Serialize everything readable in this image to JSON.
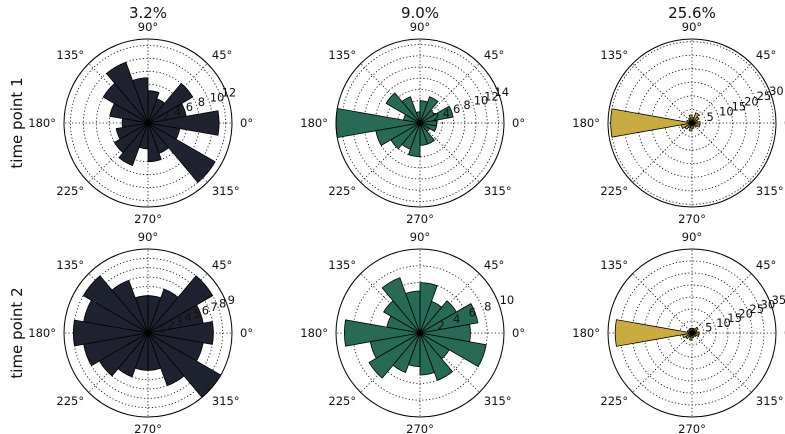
{
  "figure": {
    "row_labels": [
      "time point 1",
      "time point 2"
    ],
    "column_titles": [
      "3.2%",
      "9.0%",
      "25.6%"
    ],
    "angle_tick_labels": [
      "0°",
      "45°",
      "90°",
      "135°",
      "180°",
      "225°",
      "270°",
      "315°"
    ]
  },
  "chart_data": [
    {
      "type": "polar-bar",
      "title": "3.2%",
      "row": "time point 1",
      "color": "#1f2230",
      "theta_deg": [
        0,
        20,
        40,
        60,
        80,
        100,
        120,
        140,
        160,
        180,
        200,
        220,
        240,
        260,
        280,
        300,
        320,
        340
      ],
      "values": [
        11,
        6,
        8,
        4,
        5,
        7,
        10,
        8,
        6,
        4,
        5,
        6,
        7,
        4,
        6,
        5,
        12,
        5
      ],
      "rmax": 13,
      "r_ticks": [
        2,
        4,
        6,
        8,
        10,
        12
      ],
      "r_tick_labels": [
        "2",
        "4",
        "6",
        "8",
        "10",
        "12"
      ],
      "grid": true
    },
    {
      "type": "polar-bar",
      "title": "9.0%",
      "row": "time point 1",
      "color": "#276b56",
      "theta_deg": [
        0,
        20,
        40,
        60,
        80,
        100,
        120,
        140,
        160,
        180,
        200,
        220,
        240,
        260,
        280,
        300,
        320,
        340
      ],
      "values": [
        3,
        6,
        3,
        5,
        4,
        2,
        5,
        7,
        3,
        15,
        8,
        6,
        5,
        6,
        4,
        4,
        2,
        3
      ],
      "rmax": 15,
      "r_ticks": [
        2,
        4,
        6,
        8,
        10,
        12,
        14
      ],
      "r_tick_labels": [
        "2",
        "4",
        "6",
        "8",
        "10",
        "12",
        "14"
      ],
      "grid": true
    },
    {
      "type": "polar-bar",
      "title": "25.6%",
      "row": "time point 1",
      "color": "#c8ac42",
      "theta_deg": [
        0,
        20,
        40,
        60,
        80,
        100,
        120,
        140,
        160,
        180,
        200,
        220,
        240,
        260,
        280,
        300,
        320,
        340
      ],
      "values": [
        3,
        2,
        3,
        4,
        2,
        3,
        2,
        1,
        2,
        30,
        4,
        3,
        2,
        3,
        2,
        1,
        2,
        3
      ],
      "rmax": 31,
      "r_ticks": [
        5,
        10,
        15,
        20,
        25,
        30
      ],
      "r_tick_labels": [
        "5",
        "10",
        "15",
        "20",
        "25",
        "30"
      ],
      "grid": true
    },
    {
      "type": "polar-bar",
      "title": "",
      "row": "time point 2",
      "color": "#1f2230",
      "theta_deg": [
        0,
        20,
        40,
        60,
        80,
        100,
        120,
        140,
        160,
        180,
        200,
        220,
        240,
        260,
        280,
        300,
        320,
        340
      ],
      "values": [
        7,
        6,
        8,
        5,
        4,
        4,
        6,
        8,
        7,
        8,
        7,
        6,
        5,
        4,
        4,
        6,
        9,
        6
      ],
      "rmax": 9,
      "r_ticks": [
        1,
        2,
        3,
        4,
        5,
        6,
        7,
        8,
        9
      ],
      "r_tick_labels": [
        "1",
        "2",
        "3",
        "4",
        "5",
        "6",
        "7",
        "8",
        "9"
      ],
      "grid": true
    },
    {
      "type": "polar-bar",
      "title": "",
      "row": "time point 2",
      "color": "#276b56",
      "theta_deg": [
        0,
        20,
        40,
        60,
        80,
        100,
        120,
        140,
        160,
        180,
        200,
        220,
        240,
        260,
        280,
        300,
        320,
        340
      ],
      "values": [
        6,
        7,
        5,
        4,
        6,
        5,
        7,
        5,
        4,
        9,
        6,
        7,
        5,
        4,
        5,
        6,
        4,
        8
      ],
      "rmax": 10,
      "r_ticks": [
        2,
        4,
        6,
        8,
        10
      ],
      "r_tick_labels": [
        "2",
        "4",
        "6",
        "8",
        "10"
      ],
      "grid": true
    },
    {
      "type": "polar-bar",
      "title": "",
      "row": "time point 2",
      "color": "#c8ac42",
      "theta_deg": [
        0,
        20,
        40,
        60,
        80,
        100,
        120,
        140,
        160,
        180,
        200,
        220,
        240,
        260,
        280,
        300,
        320,
        340
      ],
      "values": [
        3,
        2,
        3,
        2,
        2,
        2,
        2,
        1,
        2,
        32,
        4,
        3,
        2,
        3,
        2,
        1,
        2,
        3
      ],
      "rmax": 35,
      "r_ticks": [
        5,
        10,
        15,
        20,
        25,
        30,
        35
      ],
      "r_tick_labels": [
        "5",
        "10",
        "15",
        "20",
        "25",
        "30",
        "35"
      ],
      "grid": true
    }
  ]
}
